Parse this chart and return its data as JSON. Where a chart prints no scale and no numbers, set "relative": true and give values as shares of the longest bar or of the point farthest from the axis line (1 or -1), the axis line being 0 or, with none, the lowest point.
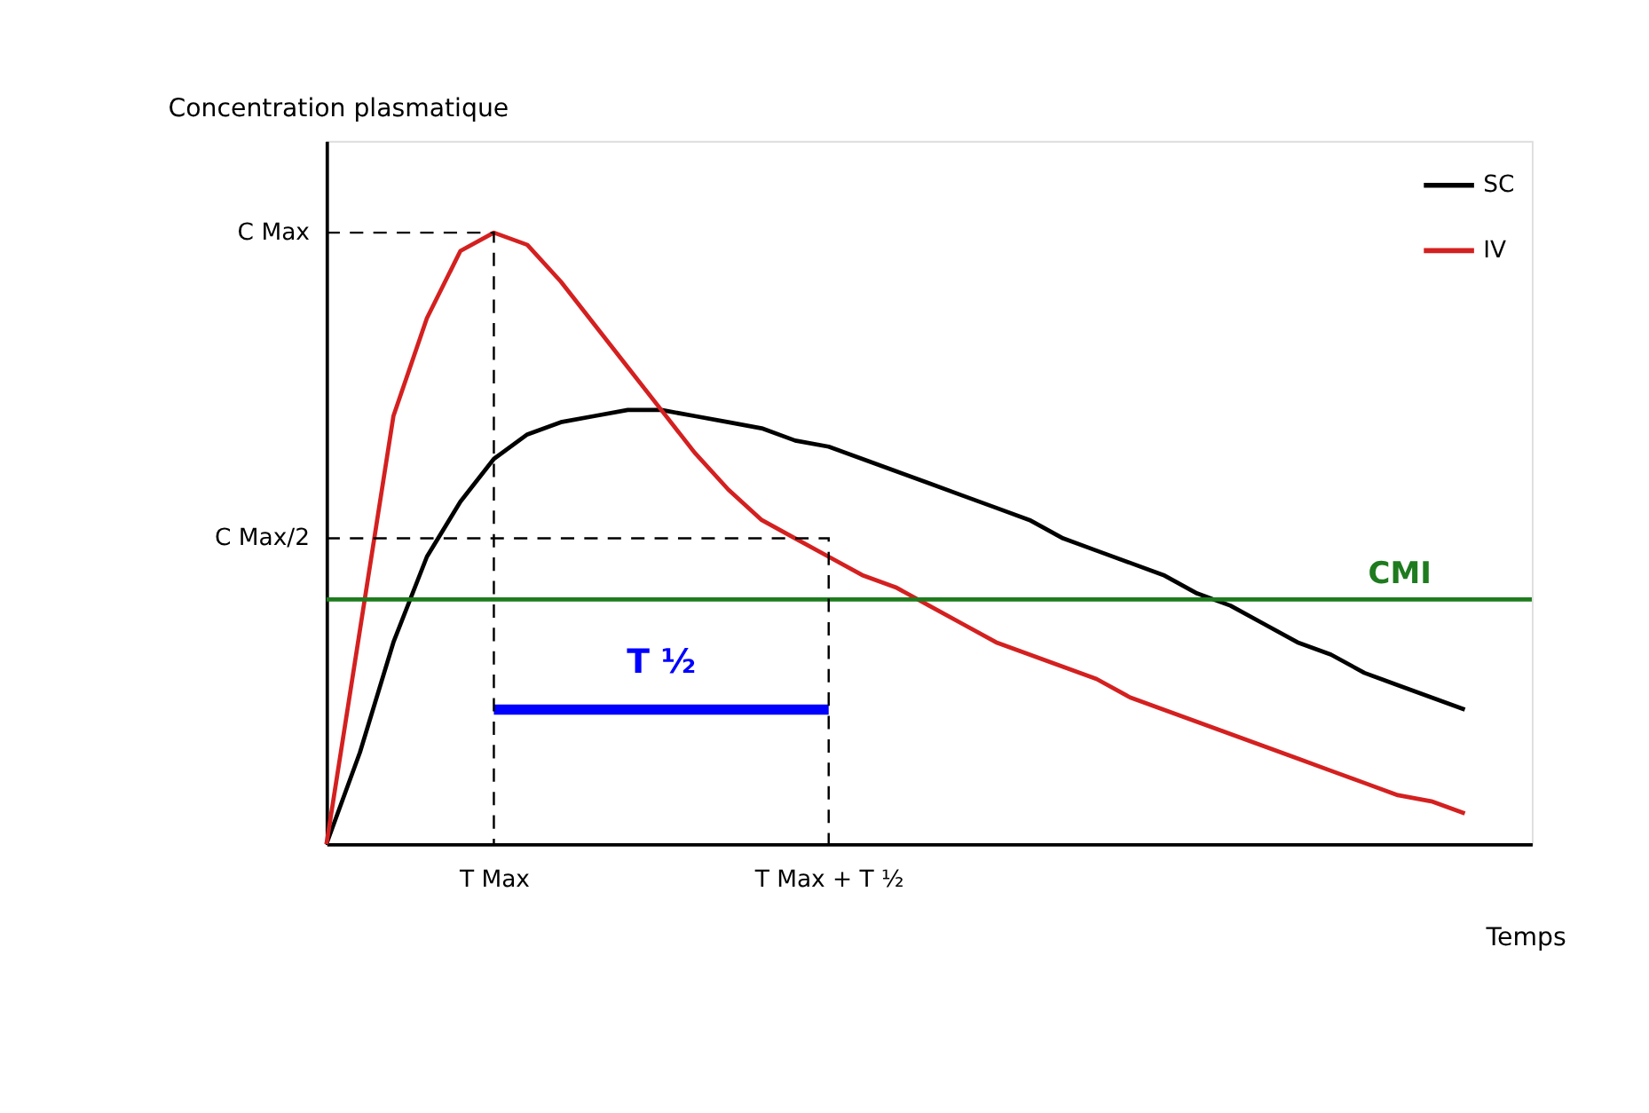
{
  "chart_data": {
    "type": "line",
    "relative": true,
    "xlabel": "Temps",
    "ylabel": "Concentration plasmatique",
    "categories": [
      null,
      null,
      null,
      null,
      null,
      "T Max",
      null,
      null,
      null,
      null,
      null,
      null,
      null,
      null,
      null,
      "T Max + T ½",
      null,
      null,
      null,
      null,
      null,
      null,
      null,
      null,
      null,
      null,
      null,
      null,
      null,
      null,
      null,
      null,
      null,
      null,
      null,
      null,
      null
    ],
    "grid": false,
    "legend": "top right",
    "marker": "none",
    "line_style": "solid",
    "tick_labels": "x",
    "series": [
      {
        "name": "SC",
        "color": "#000000",
        "values": [
          0,
          0.15,
          0.33,
          0.47,
          0.56,
          0.63,
          0.67,
          0.69,
          0.7,
          0.71,
          0.71,
          0.7,
          0.69,
          0.68,
          0.66,
          0.65,
          0.63,
          0.61,
          0.59,
          0.57,
          0.55,
          0.53,
          0.5,
          0.48,
          0.46,
          0.44,
          0.41,
          0.39,
          0.36,
          0.33,
          0.31,
          0.28,
          0.26,
          0.24,
          0.22,
          null,
          null
        ]
      },
      {
        "name": "IV",
        "color": "#d42020",
        "values": [
          0,
          0.35,
          0.7,
          0.86,
          0.97,
          1.0,
          0.98,
          0.92,
          0.85,
          0.78,
          0.71,
          0.64,
          0.58,
          0.53,
          0.5,
          0.47,
          0.44,
          0.42,
          0.39,
          0.36,
          0.33,
          0.31,
          0.29,
          0.27,
          0.24,
          0.22,
          0.2,
          0.18,
          0.16,
          0.14,
          0.12,
          0.1,
          0.08,
          0.07,
          0.05,
          null,
          null
        ]
      },
      {
        "color": "#0000ff",
        "values": [
          null,
          null,
          null,
          null,
          null,
          0.22,
          0.22,
          0.22,
          0.22,
          0.22,
          0.22,
          0.22,
          0.22,
          0.22,
          0.22,
          0.22,
          null,
          null,
          null,
          null,
          null,
          null,
          null,
          null,
          null,
          null,
          null,
          null,
          null,
          null,
          null,
          null,
          null,
          null,
          null,
          null,
          null
        ]
      }
    ],
    "ref_lines": [
      {
        "axis": "y",
        "value": 0.4,
        "label": "CMI",
        "color": "#1e7b1e"
      }
    ],
    "annotations": [
      "C Max",
      "C Max/2",
      "T ½"
    ]
  }
}
